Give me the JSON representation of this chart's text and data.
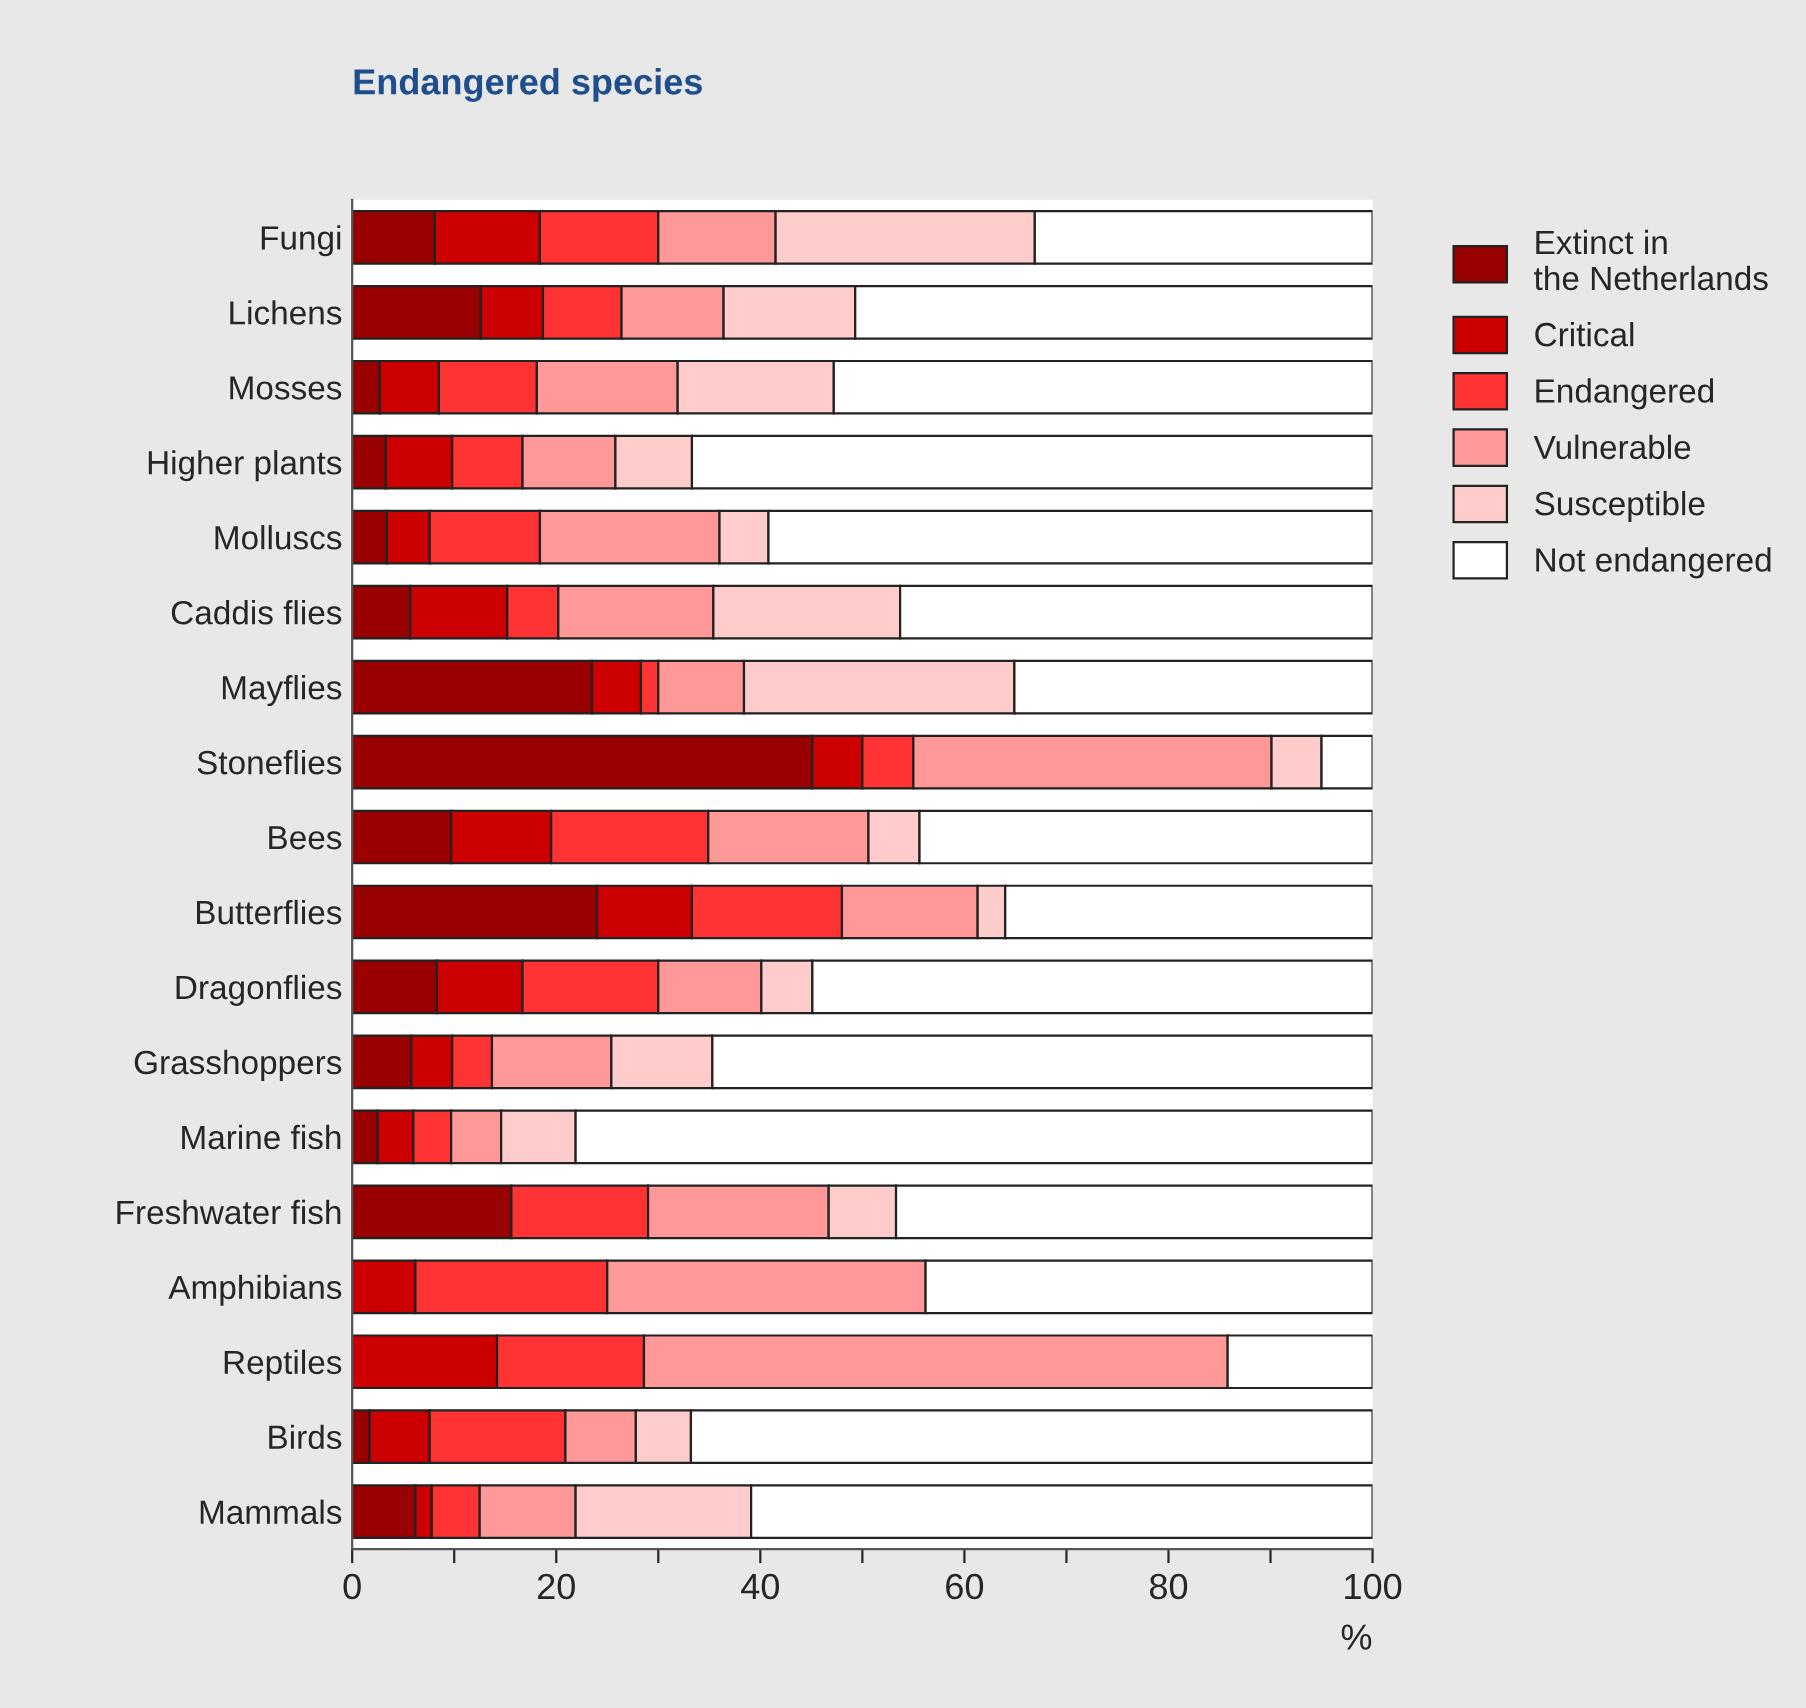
{
  "chart_data": {
    "type": "bar",
    "orientation": "horizontal",
    "stacked": true,
    "title": "Endangered species",
    "xlabel": "%",
    "categories": [
      "Fungi",
      "Lichens",
      "Mosses",
      "Higher plants",
      "Molluscs",
      "Caddis flies",
      "Mayflies",
      "Stoneflies",
      "Bees",
      "Butterflies",
      "Dragonflies",
      "Grasshoppers",
      "Marine fish",
      "Freshwater fish",
      "Amphibians",
      "Reptiles",
      "Birds",
      "Mammals"
    ],
    "series": [
      {
        "name": "Extinct in\nthe Netherlands",
        "color": "#990000",
        "values": [
          8.1,
          12.6,
          2.7,
          3.3,
          3.4,
          5.7,
          23.5,
          45.1,
          9.7,
          24.0,
          8.3,
          5.8,
          2.5,
          15.6,
          0,
          0,
          1.7,
          6.2
        ]
      },
      {
        "name": "Critical",
        "color": "#cc0000",
        "values": [
          10.3,
          6.1,
          5.8,
          6.5,
          4.2,
          9.5,
          4.8,
          4.9,
          9.8,
          9.3,
          8.4,
          4.0,
          3.5,
          0,
          6.2,
          14.2,
          5.9,
          1.6
        ]
      },
      {
        "name": "Endangered",
        "color": "#ff3333",
        "values": [
          11.6,
          7.7,
          9.6,
          6.9,
          10.8,
          5.0,
          1.7,
          5.0,
          15.4,
          14.7,
          13.3,
          3.9,
          3.7,
          13.4,
          18.8,
          14.4,
          13.3,
          4.7
        ]
      },
      {
        "name": "Vulnerable",
        "color": "#ff9999",
        "values": [
          11.5,
          10.0,
          13.8,
          9.1,
          17.6,
          15.2,
          8.4,
          35.1,
          15.7,
          13.3,
          10.1,
          11.7,
          4.9,
          17.7,
          31.2,
          57.2,
          6.9,
          9.4
        ]
      },
      {
        "name": "Susceptible",
        "color": "#ffcccc",
        "values": [
          25.4,
          12.9,
          15.3,
          7.5,
          4.8,
          18.3,
          26.5,
          4.9,
          5.0,
          2.7,
          5.0,
          9.9,
          7.3,
          6.6,
          0,
          0,
          5.4,
          17.2
        ]
      },
      {
        "name": "Not endangered",
        "color": "#ffffff",
        "values": [
          33.1,
          50.7,
          52.8,
          66.7,
          59.2,
          46.3,
          35.1,
          5.0,
          44.4,
          36.0,
          54.9,
          64.7,
          78.1,
          46.7,
          43.8,
          14.2,
          66.8,
          60.9
        ]
      }
    ],
    "xlim": [
      0,
      100
    ],
    "xticks": [
      0,
      {
        "value": 10,
        "label": null
      },
      20,
      {
        "value": 30,
        "label": null
      },
      40,
      {
        "value": 50,
        "label": null
      },
      60,
      {
        "value": 70,
        "label": null
      },
      80,
      {
        "value": 90,
        "label": null
      },
      100
    ],
    "grid": false,
    "legend": "top right"
  }
}
